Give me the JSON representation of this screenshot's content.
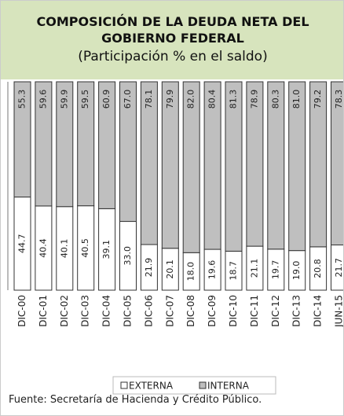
{
  "chart_data": {
    "type": "stacked_bar",
    "title": "COMPOSICIÓN DE LA DEUDA NETA DEL GOBIERNO FEDERAL",
    "subtitle": "(Participación % en el saldo)",
    "categories": [
      "DIC-00",
      "DIC-01",
      "DIC-02",
      "DIC-03",
      "DIC-04",
      "DIC-05",
      "DIC-06",
      "DIC-07",
      "DIC-08",
      "DIC-09",
      "DIC-10",
      "DIC-11",
      "DIC-12",
      "DIC-13",
      "DIC-14",
      "JUN-15"
    ],
    "series": [
      {
        "name": "EXTERNA",
        "color": "#ffffff",
        "values": [
          44.7,
          40.4,
          40.1,
          40.5,
          39.1,
          33.0,
          21.9,
          20.1,
          18.0,
          19.6,
          18.7,
          21.1,
          19.7,
          19.0,
          20.8,
          21.7
        ],
        "value_labels": [
          "44.7",
          "40.4",
          "40.1",
          "40.5",
          "39.1",
          "33.0",
          "21.9",
          "20.1",
          "18.0",
          "19.6",
          "18.7",
          "21.1",
          "19.7",
          "19.0",
          "20.8",
          "21.7"
        ]
      },
      {
        "name": "INTERNA",
        "color": "#bfbfbf",
        "values": [
          55.3,
          59.6,
          59.9,
          59.5,
          60.9,
          67.0,
          78.1,
          79.9,
          82.0,
          80.4,
          81.3,
          78.9,
          80.3,
          81.0,
          79.2,
          78.3
        ],
        "value_labels": [
          "55.3",
          "59.6",
          "59.9",
          "59.5",
          "60.9",
          "67.0",
          "78.1",
          "79.9",
          "82.0",
          "80.4",
          "81.3",
          "78.9",
          "80.3",
          "81.0",
          "79.2",
          "78.3"
        ]
      }
    ],
    "ylim": [
      0,
      100
    ],
    "legend": "bottom",
    "source": "Fuente: Secretaría de Hacienda y Crédito Público.",
    "header_color": "#d7e4bd"
  }
}
